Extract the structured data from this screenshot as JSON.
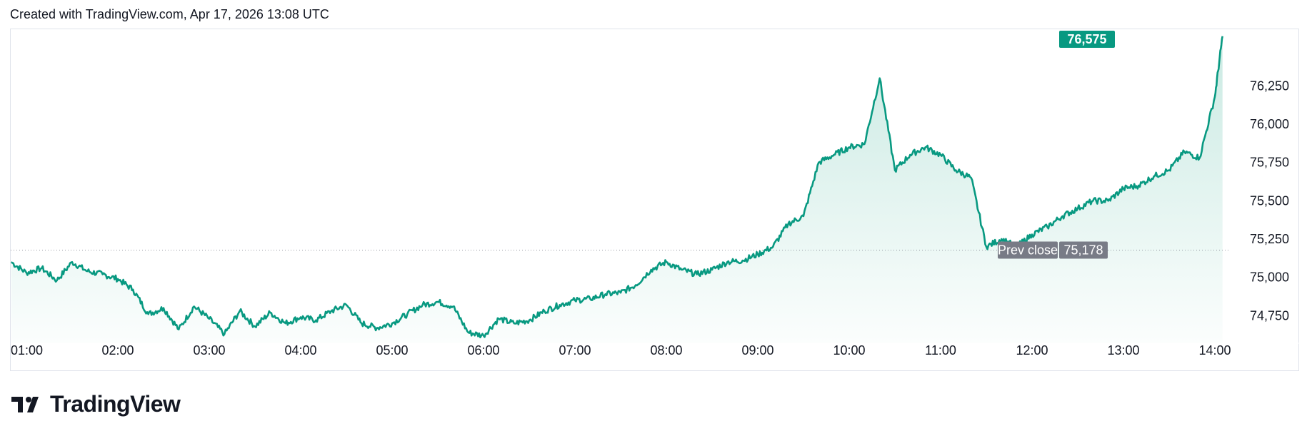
{
  "header": {
    "text": "Created with TradingView.com, Apr 17, 2026 13:08 UTC"
  },
  "footer": {
    "brand": "TradingView"
  },
  "colors": {
    "line": "#089981",
    "fill_top": "#b8e3d9",
    "badge_current": "#089981",
    "badge_prev": "#787b86"
  },
  "chart_data": {
    "type": "area",
    "x_ticks": [
      "01:00",
      "02:00",
      "03:00",
      "04:00",
      "05:00",
      "06:00",
      "07:00",
      "08:00",
      "09:00",
      "10:00",
      "11:00",
      "12:00",
      "13:00",
      "14:00"
    ],
    "y_ticks": [
      74750,
      75000,
      75250,
      75500,
      75750,
      76000,
      76250
    ],
    "y_tick_labels": [
      "74,750",
      "75,000",
      "75,250",
      "75,500",
      "75,750",
      "76,000",
      "76,250"
    ],
    "ylim": [
      74570,
      76620
    ],
    "prev_close": {
      "label": "Prev close",
      "value": 75178,
      "value_label": "75,178"
    },
    "current": {
      "value": 76575,
      "value_label": "76,575"
    },
    "series": [
      {
        "x": [
          "00:50",
          "01:00",
          "01:10",
          "01:20",
          "01:30",
          "01:40",
          "01:50",
          "02:00",
          "02:10",
          "02:20",
          "02:30",
          "02:40",
          "02:50",
          "03:00",
          "03:10",
          "03:20",
          "03:30",
          "03:40",
          "03:50",
          "04:00",
          "04:10",
          "04:20",
          "04:30",
          "04:40",
          "04:50",
          "05:00",
          "05:10",
          "05:20",
          "05:30",
          "05:40",
          "05:50",
          "06:00",
          "06:10",
          "06:20",
          "06:30",
          "06:40",
          "06:50",
          "07:00",
          "07:10",
          "07:20",
          "07:30",
          "07:40",
          "07:50",
          "08:00",
          "08:10",
          "08:20",
          "08:30",
          "08:40",
          "08:50",
          "09:00",
          "09:10",
          "09:20",
          "09:30",
          "09:40",
          "09:50",
          "10:00",
          "10:10",
          "10:20",
          "10:30",
          "10:40",
          "10:50",
          "11:00",
          "11:10",
          "11:20",
          "11:30",
          "11:40",
          "11:50",
          "12:00",
          "12:10",
          "12:20",
          "12:30",
          "12:40",
          "12:50",
          "13:00",
          "13:10",
          "13:20",
          "13:30",
          "13:40",
          "13:50",
          "14:00",
          "14:05"
        ],
        "values": [
          75100,
          75030,
          75060,
          74980,
          75100,
          75040,
          75020,
          74990,
          74920,
          74760,
          74800,
          74660,
          74810,
          74730,
          74630,
          74780,
          74680,
          74770,
          74700,
          74740,
          74720,
          74780,
          74820,
          74700,
          74670,
          74700,
          74760,
          74820,
          74840,
          74810,
          74640,
          74620,
          74730,
          74700,
          74720,
          74780,
          74820,
          74850,
          74860,
          74890,
          74900,
          74950,
          75050,
          75100,
          75050,
          75020,
          75050,
          75100,
          75110,
          75150,
          75200,
          75350,
          75400,
          75750,
          75800,
          75850,
          75870,
          76300,
          75700,
          75800,
          75850,
          75800,
          75700,
          75650,
          75200,
          75250,
          75200,
          75280,
          75330,
          75400,
          75450,
          75500,
          75500,
          75580,
          75600,
          75660,
          75700,
          75820,
          75780,
          76180,
          76575
        ]
      }
    ]
  }
}
